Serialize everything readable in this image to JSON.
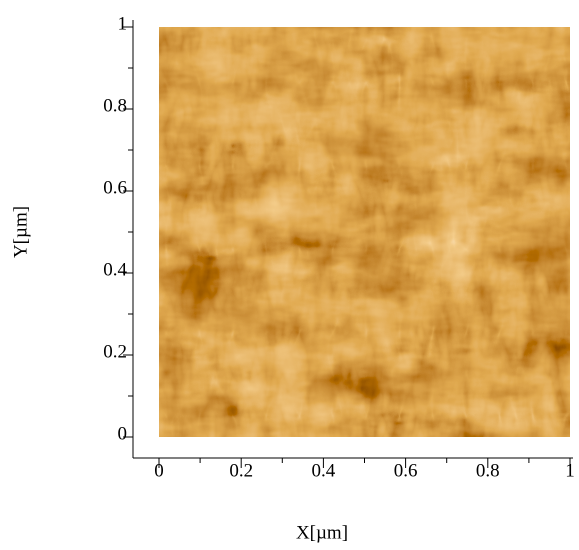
{
  "chart_data": {
    "type": "image",
    "xlabel": "X[µm]",
    "ylabel": "Y[µm]",
    "xlim": [
      0,
      1
    ],
    "ylim": [
      0,
      1
    ],
    "xticks": [
      0,
      0.2,
      0.4,
      0.6,
      0.8,
      1
    ],
    "yticks": [
      0,
      0.2,
      0.4,
      0.6,
      0.8,
      1
    ]
  }
}
